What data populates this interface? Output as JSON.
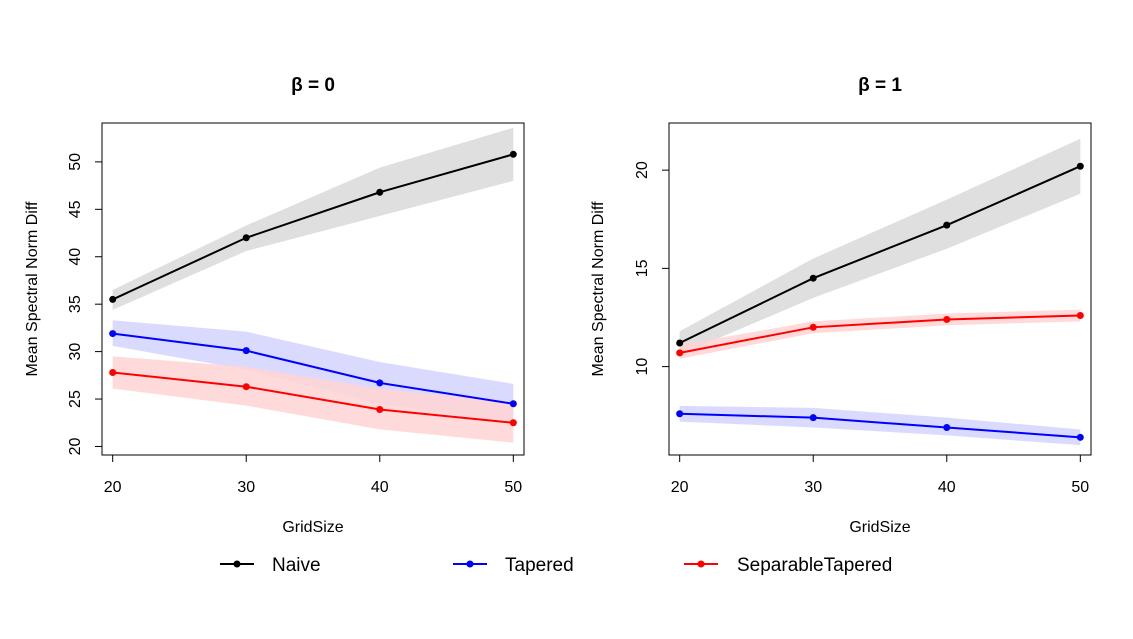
{
  "chart_data": [
    {
      "type": "line",
      "title": "β = 0",
      "xlabel": "GridSize",
      "ylabel": "Mean Spectral Norm Diff",
      "x": [
        20,
        30,
        40,
        50
      ],
      "xticks": [
        20,
        30,
        40,
        50
      ],
      "yticks": [
        20,
        25,
        30,
        35,
        40,
        45,
        50
      ],
      "xlim": [
        19.2,
        50.8
      ],
      "ylim": [
        19.1,
        54.1
      ],
      "grid": false,
      "series": [
        {
          "name": "Naive",
          "color": "#000000",
          "band_color": "#d9d9d9",
          "values": [
            35.5,
            42.0,
            46.8,
            50.8
          ],
          "lower": [
            34.4,
            40.6,
            44.3,
            48.0
          ],
          "upper": [
            36.5,
            43.3,
            49.4,
            53.6
          ]
        },
        {
          "name": "Tapered",
          "color": "#0000ff",
          "band_color": "#d3d3ff",
          "values": [
            31.9,
            30.1,
            26.7,
            24.5
          ],
          "lower": [
            30.6,
            28.1,
            24.5,
            22.5
          ],
          "upper": [
            33.3,
            32.1,
            28.9,
            26.6
          ]
        },
        {
          "name": "SeparableTapered",
          "color": "#ff0000",
          "band_color": "#ffd3d3",
          "values": [
            27.8,
            26.3,
            23.9,
            22.5
          ],
          "lower": [
            26.1,
            24.3,
            21.8,
            20.4
          ],
          "upper": [
            29.5,
            28.4,
            26.1,
            24.6
          ]
        }
      ]
    },
    {
      "type": "line",
      "title": "β = 1",
      "xlabel": "GridSize",
      "ylabel": "Mean Spectral Norm Diff",
      "x": [
        20,
        30,
        40,
        50
      ],
      "xticks": [
        20,
        30,
        40,
        50
      ],
      "yticks": [
        10,
        15,
        20
      ],
      "xlim": [
        19.2,
        50.8
      ],
      "ylim": [
        5.5,
        22.4
      ],
      "grid": false,
      "series": [
        {
          "name": "Naive",
          "color": "#000000",
          "band_color": "#d9d9d9",
          "values": [
            11.2,
            14.5,
            17.2,
            20.2
          ],
          "lower": [
            10.6,
            13.5,
            16.0,
            18.8
          ],
          "upper": [
            11.8,
            15.5,
            18.5,
            21.6
          ]
        },
        {
          "name": "Tapered",
          "color": "#0000ff",
          "band_color": "#d3d3ff",
          "values": [
            7.6,
            7.4,
            6.9,
            6.4
          ],
          "lower": [
            7.2,
            6.9,
            6.5,
            6.0
          ],
          "upper": [
            8.0,
            7.9,
            7.4,
            6.8
          ]
        },
        {
          "name": "SeparableTapered",
          "color": "#ff0000",
          "band_color": "#ffd3d3",
          "values": [
            10.7,
            12.0,
            12.4,
            12.6
          ],
          "lower": [
            10.4,
            11.7,
            12.1,
            12.3
          ],
          "upper": [
            11.1,
            12.3,
            12.7,
            12.9
          ]
        }
      ]
    }
  ],
  "legend": {
    "placement": "bottom",
    "items": [
      {
        "label": "Naive",
        "color": "#000000"
      },
      {
        "label": "Tapered",
        "color": "#0000ff"
      },
      {
        "label": "SeparableTapered",
        "color": "#ff0000"
      }
    ]
  }
}
